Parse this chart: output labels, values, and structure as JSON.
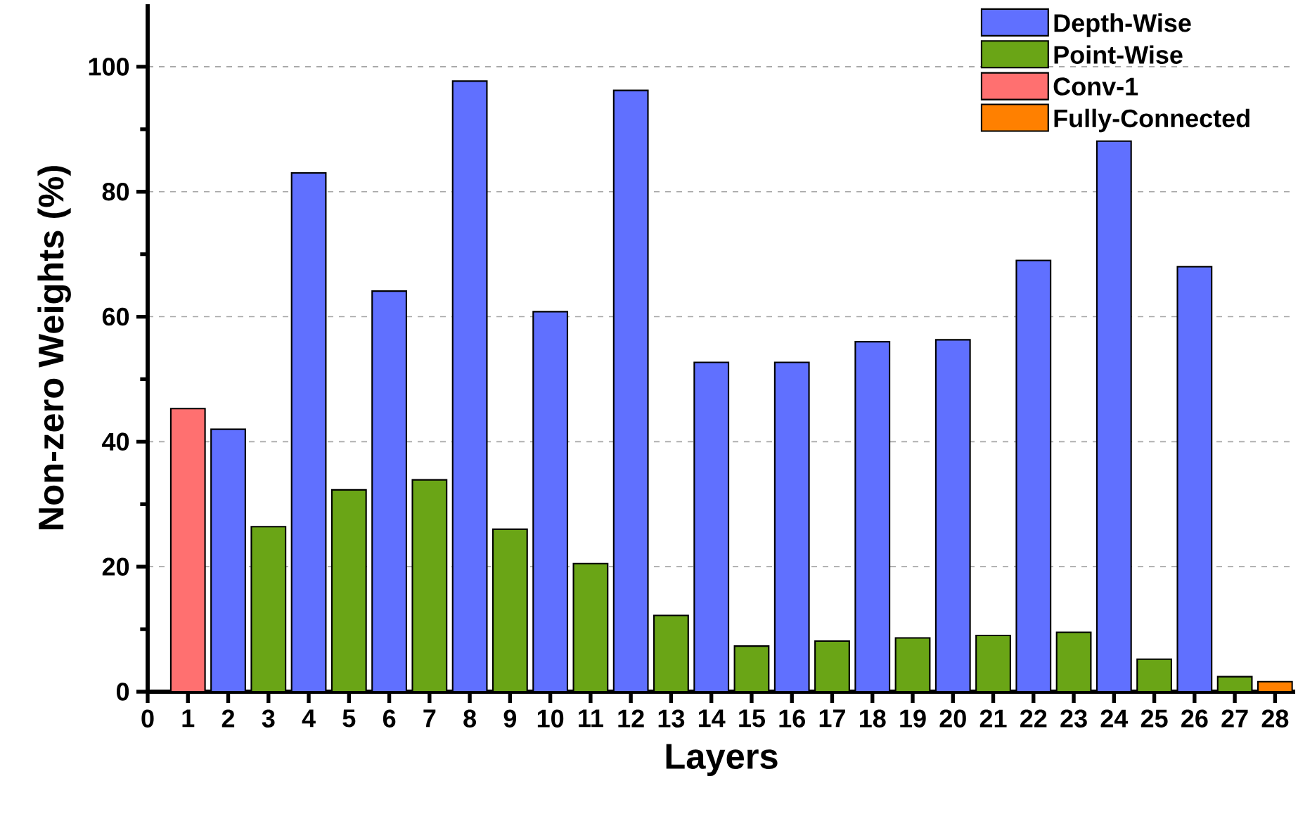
{
  "chart_data": {
    "type": "bar",
    "xlabel": "Layers",
    "ylabel": "Non-zero Weights (%)",
    "xlim": [
      0,
      28.5
    ],
    "xticks": [
      0,
      1,
      2,
      3,
      4,
      5,
      6,
      7,
      8,
      9,
      10,
      11,
      12,
      13,
      14,
      15,
      16,
      17,
      18,
      19,
      20,
      21,
      22,
      23,
      24,
      25,
      26,
      27,
      28
    ],
    "ylim": [
      0,
      110
    ],
    "yticks": [
      0,
      20,
      40,
      60,
      80,
      100
    ],
    "grid": "y",
    "legend": "top right",
    "series": [
      {
        "name": "Depth-Wise",
        "color": "#6070ff",
        "x": [
          2,
          4,
          6,
          8,
          10,
          12,
          14,
          16,
          18,
          20,
          22,
          24,
          26
        ],
        "values": [
          42.0,
          83.0,
          64.1,
          97.7,
          60.8,
          96.2,
          52.7,
          52.7,
          56.0,
          56.3,
          69.0,
          88.1,
          68.0
        ]
      },
      {
        "name": "Point-Wise",
        "color": "#6aa516",
        "x": [
          3,
          5,
          7,
          9,
          11,
          13,
          15,
          17,
          19,
          21,
          23,
          25,
          27
        ],
        "values": [
          26.4,
          32.3,
          33.9,
          26.0,
          20.5,
          12.2,
          7.3,
          8.1,
          8.6,
          9.0,
          9.5,
          5.2,
          2.4
        ]
      },
      {
        "name": "Conv-1",
        "color": "#ff7070",
        "x": [
          1
        ],
        "values": [
          45.3
        ]
      },
      {
        "name": "Fully-Connected",
        "color": "#ff8000",
        "x": [
          28
        ],
        "values": [
          1.6
        ]
      }
    ]
  }
}
